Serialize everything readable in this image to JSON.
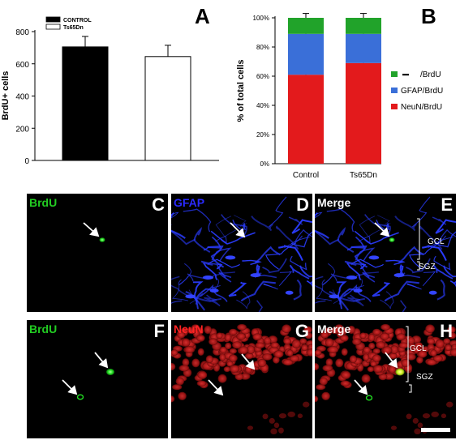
{
  "chart_data": [
    {
      "panel_letter": "A",
      "type": "bar",
      "categories": [
        "CONTROL",
        "Ts65Dn"
      ],
      "values": [
        705,
        645
      ],
      "errors": [
        65,
        70
      ],
      "ylabel": "BrdU+ cells",
      "xlabel": "",
      "ylim": [
        0,
        800
      ],
      "yticks": [
        "0",
        "200",
        "400",
        "600",
        "800"
      ],
      "legend": [
        "CONTROL",
        "Ts65Dn"
      ],
      "colors": [
        "#000000",
        "#ffffff"
      ],
      "grid": false,
      "legend_position": "top-left"
    },
    {
      "panel_letter": "B",
      "type": "bar",
      "stacked": true,
      "categories": [
        "Control",
        "Ts65Dn"
      ],
      "ylabel": "% of total cells",
      "ylim": [
        0,
        100
      ],
      "yticks": [
        "0%",
        "20%",
        "40%",
        "60%",
        "80%",
        "100%"
      ],
      "series": [
        {
          "name": "NeuN/BrdU",
          "color": "#e31a1c",
          "values": [
            61,
            69
          ],
          "errors": [
            3,
            3
          ]
        },
        {
          "name": "GFAP/BrdU",
          "color": "#3a6fd8",
          "values": [
            28,
            20
          ],
          "errors": [
            1,
            2
          ]
        },
        {
          "name": "/BrdU",
          "color": "#21a32a",
          "values": [
            11,
            11
          ],
          "errors": [
            3,
            3
          ]
        }
      ],
      "legend_order": [
        "/BrdU",
        "GFAP/BrdU",
        "NeuN/BrdU"
      ],
      "grid": false,
      "legend_position": "right"
    }
  ],
  "micrographs": [
    {
      "letter": "C",
      "label": "BrdU",
      "label_color": "#22cc22",
      "stain": "brdu"
    },
    {
      "letter": "D",
      "label": "GFAP",
      "label_color": "#2a2aff",
      "stain": "gfap"
    },
    {
      "letter": "E",
      "label": "Merge",
      "label_color": "#ffffff",
      "stain": "merge-gfap",
      "annotations": [
        "GCL",
        "SGZ"
      ]
    },
    {
      "letter": "F",
      "label": "BrdU",
      "label_color": "#22cc22",
      "stain": "brdu2"
    },
    {
      "letter": "G",
      "label": "NeuN",
      "label_color": "#ff2222",
      "stain": "neun"
    },
    {
      "letter": "H",
      "label": "Merge",
      "label_color": "#ffffff",
      "stain": "merge-neun",
      "annotations": [
        "GCL",
        "SGZ"
      ]
    }
  ]
}
